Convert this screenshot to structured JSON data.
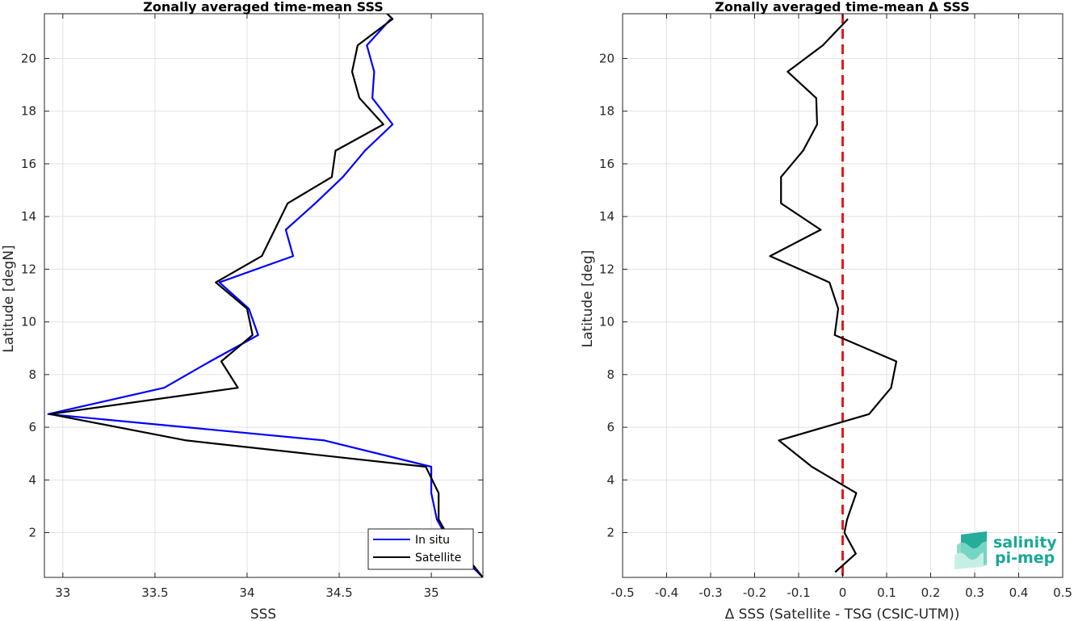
{
  "chart_data": [
    {
      "type": "line",
      "title": "Zonally averaged time-mean SSS",
      "xlabel": "SSS",
      "ylabel": "Latitude [degN]",
      "xlim": [
        32.9,
        35.28
      ],
      "ylim": [
        0.3,
        21.7
      ],
      "xticks": [
        33,
        33.5,
        34,
        34.5,
        35
      ],
      "xtick_labels": [
        "33",
        "33.5",
        "34",
        "34.5",
        "35"
      ],
      "yticks": [
        2,
        4,
        6,
        8,
        10,
        12,
        14,
        16,
        18,
        20
      ],
      "ytick_labels": [
        "2",
        "4",
        "6",
        "8",
        "10",
        "12",
        "14",
        "16",
        "18",
        "20"
      ],
      "grid": true,
      "legend_position": "bottom-right",
      "series": [
        {
          "name": "In situ",
          "color": "#0000ff",
          "points": [
            [
              35.28,
              0.3
            ],
            [
              35.18,
              1.0
            ],
            [
              35.07,
              2.0
            ],
            [
              35.03,
              2.5
            ],
            [
              35.0,
              3.5
            ],
            [
              35.0,
              4.5
            ],
            [
              34.42,
              5.5
            ],
            [
              32.92,
              6.5
            ],
            [
              33.55,
              7.5
            ],
            [
              33.8,
              8.5
            ],
            [
              34.06,
              9.5
            ],
            [
              34.01,
              10.5
            ],
            [
              33.85,
              11.5
            ],
            [
              34.25,
              12.5
            ],
            [
              34.21,
              13.5
            ],
            [
              34.37,
              14.5
            ],
            [
              34.52,
              15.5
            ],
            [
              34.64,
              16.5
            ],
            [
              34.79,
              17.5
            ],
            [
              34.68,
              18.5
            ],
            [
              34.69,
              19.5
            ],
            [
              34.65,
              20.5
            ],
            [
              34.78,
              21.5
            ]
          ]
        },
        {
          "name": "Satellite",
          "color": "#000000",
          "points": [
            [
              35.28,
              0.3
            ],
            [
              35.2,
              1.0
            ],
            [
              35.08,
              2.0
            ],
            [
              35.04,
              2.5
            ],
            [
              35.04,
              3.5
            ],
            [
              34.97,
              4.5
            ],
            [
              33.67,
              5.5
            ],
            [
              32.93,
              6.5
            ],
            [
              33.95,
              7.5
            ],
            [
              33.86,
              8.5
            ],
            [
              34.03,
              9.5
            ],
            [
              34.0,
              10.5
            ],
            [
              33.83,
              11.5
            ],
            [
              34.08,
              12.5
            ],
            [
              34.22,
              14.5
            ],
            [
              34.46,
              15.5
            ],
            [
              34.48,
              16.5
            ],
            [
              34.74,
              17.5
            ],
            [
              34.61,
              18.5
            ],
            [
              34.57,
              19.5
            ],
            [
              34.6,
              20.5
            ],
            [
              34.79,
              21.5
            ],
            [
              34.73,
              21.9
            ]
          ]
        }
      ]
    },
    {
      "type": "line",
      "title": "Zonally averaged time-mean Δ SSS",
      "xlabel": "Δ SSS (Satellite - TSG (CSIC-UTM))",
      "ylabel": "Latitude [deg]",
      "xlim": [
        -0.5,
        0.5
      ],
      "ylim": [
        0.3,
        21.7
      ],
      "xticks": [
        -0.5,
        -0.4,
        -0.3,
        -0.2,
        -0.1,
        0,
        0.1,
        0.2,
        0.3,
        0.4,
        0.5
      ],
      "xtick_labels": [
        "-0.5",
        "-0.4",
        "-0.3",
        "-0.2",
        "-0.1",
        "0",
        "0.1",
        "0.2",
        "0.3",
        "0.4",
        "0.5"
      ],
      "yticks": [
        2,
        4,
        6,
        8,
        10,
        12,
        14,
        16,
        18,
        20
      ],
      "ytick_labels": [
        "2",
        "4",
        "6",
        "8",
        "10",
        "12",
        "14",
        "16",
        "18",
        "20"
      ],
      "grid": true,
      "reference_line": {
        "x": 0,
        "color": "#e31a1c",
        "style": "dashed"
      },
      "series": [
        {
          "color": "#000000",
          "points": [
            [
              -0.017,
              0.5
            ],
            [
              0.03,
              1.2
            ],
            [
              0.004,
              2.0
            ],
            [
              0.01,
              2.5
            ],
            [
              0.031,
              3.5
            ],
            [
              -0.07,
              4.5
            ],
            [
              -0.145,
              5.5
            ],
            [
              0.06,
              6.5
            ],
            [
              0.11,
              7.5
            ],
            [
              0.122,
              8.5
            ],
            [
              -0.018,
              9.5
            ],
            [
              -0.01,
              10.5
            ],
            [
              -0.03,
              11.5
            ],
            [
              -0.165,
              12.5
            ],
            [
              -0.05,
              13.5
            ],
            [
              -0.14,
              14.5
            ],
            [
              -0.14,
              15.5
            ],
            [
              -0.09,
              16.5
            ],
            [
              -0.058,
              17.5
            ],
            [
              -0.06,
              18.5
            ],
            [
              -0.125,
              19.5
            ],
            [
              -0.045,
              20.5
            ],
            [
              0.012,
              21.5
            ]
          ]
        }
      ]
    }
  ],
  "logo": {
    "line1": "salinity",
    "line2": "pi-mep",
    "color": "#1aa895"
  }
}
